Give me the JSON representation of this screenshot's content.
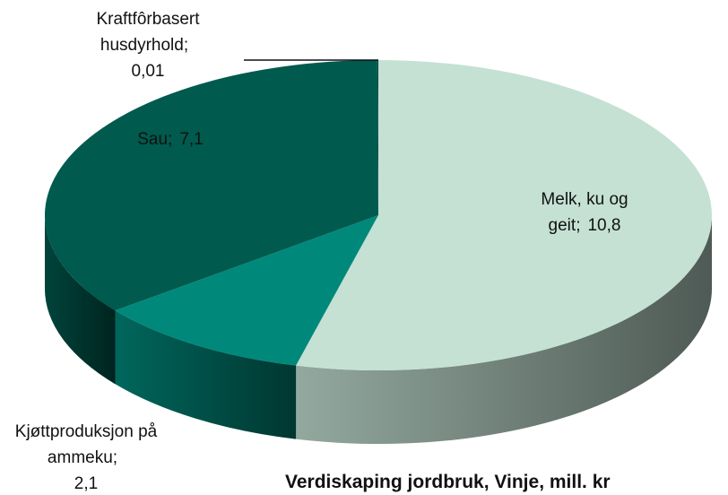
{
  "chart_data": {
    "type": "pie3d",
    "title": "Verdiskaping jordbruk, Vinje, mill. kr",
    "categories": [
      "Melk, ku og geit",
      "Kjøttproduksjon på ammeku",
      "Sau",
      "Kraftfôrbasert husdyrhold"
    ],
    "values": [
      10.8,
      2.1,
      7.1,
      0.01
    ],
    "value_labels": [
      "10,8",
      "2,1",
      "7,1",
      "0,01"
    ],
    "label_separator": ";",
    "colors": [
      "#c4e1d4",
      "#00897b",
      "#005a4e",
      "#004d43"
    ]
  }
}
